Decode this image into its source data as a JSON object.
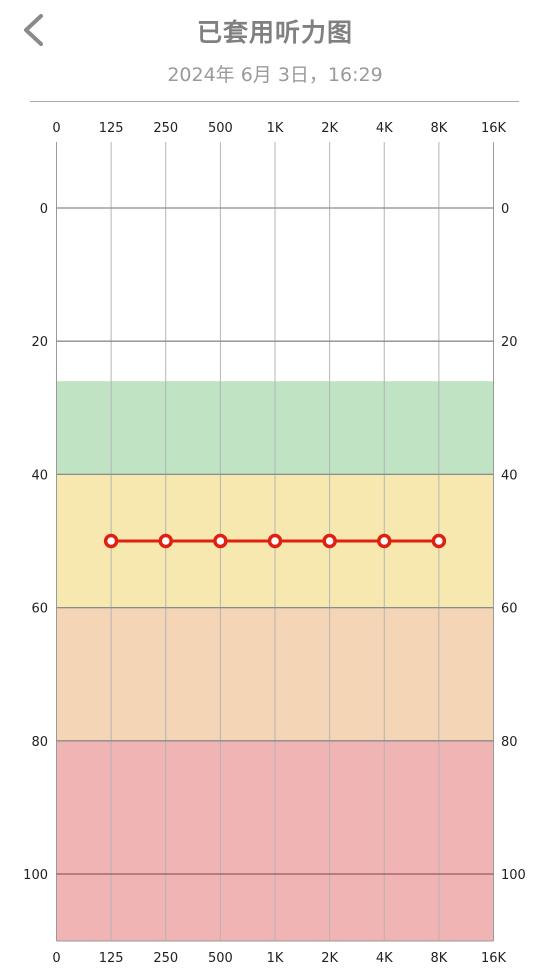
{
  "header": {
    "back_icon": "chevron-left-icon",
    "title": "已套用听力图",
    "subtitle": "2024年 6月 3日，16:29"
  },
  "chart_data": {
    "type": "line",
    "x_ticks": [
      "0",
      "125",
      "250",
      "500",
      "1K",
      "2K",
      "4K",
      "8K",
      "16K"
    ],
    "y_ticks": [
      0,
      20,
      40,
      60,
      80,
      100
    ],
    "ylim": [
      -10,
      110
    ],
    "y_inverted": true,
    "bands": [
      {
        "from": 26,
        "to": 40,
        "color": "#c0e3c3"
      },
      {
        "from": 40,
        "to": 60,
        "color": "#f7e8b0"
      },
      {
        "from": 60,
        "to": 80,
        "color": "#f4d5b6"
      },
      {
        "from": 80,
        "to": 110,
        "color": "#f1b4b5"
      }
    ],
    "series": [
      {
        "x": [
          "125",
          "250",
          "500",
          "1K",
          "2K",
          "4K",
          "8K"
        ],
        "values": [
          50,
          50,
          50,
          50,
          50,
          50,
          50
        ],
        "color": "#e02010"
      }
    ],
    "grid": true
  }
}
